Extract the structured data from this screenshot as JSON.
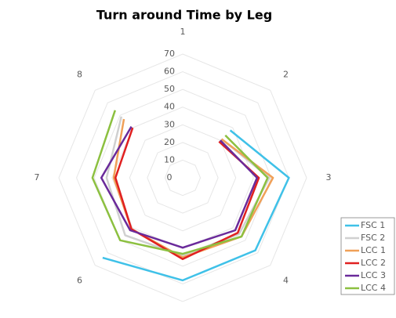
{
  "chart_data": {
    "type": "radar",
    "title": "Turn around Time by Leg",
    "categories": [
      "1",
      "2",
      "3",
      "4",
      "5",
      "6",
      "7",
      "8"
    ],
    "ylim": [
      0,
      70
    ],
    "yticks": [
      0,
      10,
      20,
      30,
      40,
      50,
      60,
      70
    ],
    "grid": true,
    "legend": "right",
    "series": [
      {
        "name": "FSC 1",
        "color": "#3fc1e8",
        "values": [
          null,
          38,
          60,
          58,
          58,
          64,
          null,
          null
        ]
      },
      {
        "name": "FSC 2",
        "color": "#d0d0d0",
        "values": [
          null,
          31,
          49,
          45,
          44,
          46,
          43,
          49
        ]
      },
      {
        "name": "LCC 1",
        "color": "#f0a058",
        "values": [
          null,
          31,
          51,
          47,
          45,
          41,
          39,
          47
        ]
      },
      {
        "name": "LCC 2",
        "color": "#e02020",
        "values": [
          null,
          29,
          43,
          44,
          46,
          41,
          38,
          40
        ]
      },
      {
        "name": "LCC 3",
        "color": "#6a2a9a",
        "values": [
          null,
          30,
          42,
          42,
          39.5,
          42,
          46,
          41
        ]
      },
      {
        "name": "LCC 4",
        "color": "#8cc040",
        "values": [
          null,
          34,
          48,
          47,
          43,
          50,
          51,
          54
        ]
      }
    ]
  }
}
